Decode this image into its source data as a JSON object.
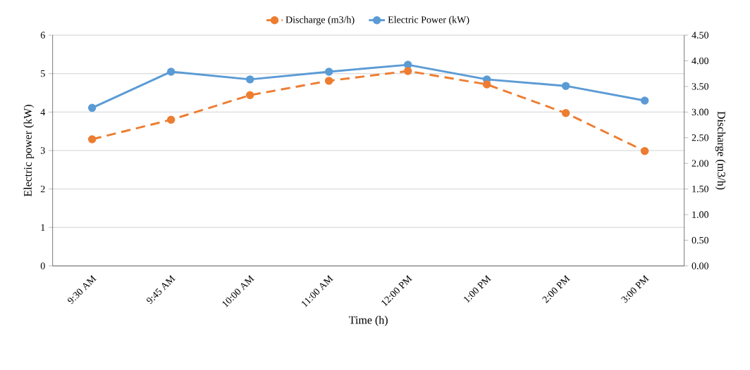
{
  "chart_data": {
    "type": "line",
    "xlabel": "Time (h)",
    "ylabel": "Electric power (kW)",
    "y2label": "Discharge (m3/h)",
    "categories": [
      "9:30 AM",
      "9:45 AM",
      "10:00 AM",
      "11:00 AM",
      "12:00 PM",
      "1:00 PM",
      "2:00 PM",
      "3:00 PM"
    ],
    "series": [
      {
        "name": "Discharge (m3/h)",
        "color": "#ed7d31",
        "axis": "y2",
        "line_style": "dashed",
        "values": [
          2.47,
          2.85,
          3.33,
          3.61,
          3.8,
          3.54,
          2.98,
          2.24
        ]
      },
      {
        "name": "Electric Power (kW)",
        "color": "#5b9bd5",
        "axis": "y",
        "line_style": "solid",
        "values": [
          4.11,
          5.05,
          4.85,
          5.05,
          5.23,
          4.85,
          4.68,
          4.3
        ]
      }
    ],
    "ylim": [
      0,
      6
    ],
    "yticks": [
      0,
      1,
      2,
      3,
      4,
      5,
      6
    ],
    "y2lim": [
      0,
      4.5
    ],
    "y2ticks": [
      {
        "value": 0,
        "label": "0.00"
      },
      {
        "value": 0.5,
        "label": "0.50"
      },
      {
        "value": 1,
        "label": "1.00"
      },
      {
        "value": 1.5,
        "label": "1.50"
      },
      {
        "value": 2,
        "label": "2.00"
      },
      {
        "value": 2.5,
        "label": "2.50"
      },
      {
        "value": 3,
        "label": "3.00"
      },
      {
        "value": 3.5,
        "label": "3.50"
      },
      {
        "value": 4,
        "label": "4.00"
      },
      {
        "value": 4.5,
        "label": "4.50"
      }
    ],
    "grid": "y",
    "legend": "top",
    "marker": "circle"
  }
}
